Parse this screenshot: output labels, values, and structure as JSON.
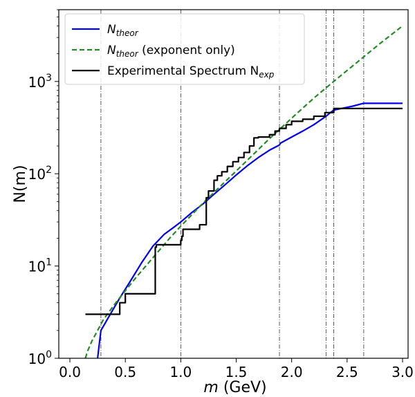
{
  "chart_data": {
    "type": "line",
    "title": "",
    "xlabel": {
      "symbol": "m",
      "unit": "(GeV)"
    },
    "ylabel": "N(m)",
    "x_scale": "linear",
    "y_scale": "log",
    "xlim": [
      -0.1,
      3.05
    ],
    "ylim": [
      1,
      6000
    ],
    "x_ticks": [
      0.0,
      0.5,
      1.0,
      1.5,
      2.0,
      2.5,
      3.0
    ],
    "x_tick_labels": [
      "0.0",
      "0.5",
      "1.0",
      "1.5",
      "2.0",
      "2.5",
      "3.0"
    ],
    "y_ticks": [
      1,
      10,
      100,
      1000
    ],
    "y_tick_labels": [
      {
        "base": "10",
        "exp": "0"
      },
      {
        "base": "10",
        "exp": "1"
      },
      {
        "base": "10",
        "exp": "2"
      },
      {
        "base": "10",
        "exp": "3"
      }
    ],
    "grid": false,
    "legend_position": "top-left",
    "vertical_lines": [
      0.28,
      1.0,
      1.89,
      2.31,
      2.38,
      2.65
    ],
    "series": [
      {
        "name": {
          "base": "N",
          "sub": "theor",
          "suffix": ""
        },
        "style": "solid",
        "color": "#0000ee",
        "x": [
          0.25,
          0.27,
          0.28,
          0.35,
          0.45,
          0.55,
          0.65,
          0.75,
          0.85,
          0.95,
          1.0,
          1.1,
          1.2,
          1.3,
          1.4,
          1.5,
          1.6,
          1.7,
          1.8,
          1.89,
          1.9,
          2.0,
          2.1,
          2.2,
          2.31,
          2.35,
          2.38,
          2.45,
          2.55,
          2.65,
          2.7,
          2.8,
          2.9,
          3.0
        ],
        "y": [
          1.0,
          1.6,
          2.0,
          2.8,
          4.5,
          7.0,
          11.0,
          16.5,
          22.0,
          27.0,
          30.0,
          38.0,
          47.0,
          60.0,
          76.0,
          97.0,
          122.0,
          150.0,
          180.0,
          205.0,
          215.0,
          250.0,
          290.0,
          340.0,
          420.0,
          460.0,
          490.0,
          510.0,
          540.0,
          580.0,
          580.0,
          580.0,
          580.0,
          580.0
        ]
      },
      {
        "name": {
          "base": "N",
          "sub": "theor",
          "suffix": " (exponent only)"
        },
        "style": "dashed",
        "color": "#228b22",
        "x": [
          0.14,
          0.16,
          0.2,
          0.25,
          0.3,
          0.4,
          0.5,
          0.6,
          0.7,
          0.8,
          0.9,
          1.0,
          1.2,
          1.4,
          1.6,
          1.8,
          2.0,
          2.2,
          2.4,
          2.6,
          2.8,
          3.0
        ],
        "y": [
          1.0,
          1.2,
          1.55,
          2.0,
          2.6,
          3.8,
          5.4,
          7.6,
          10.5,
          14.5,
          20.0,
          27.0,
          48.0,
          82.0,
          140.0,
          240.0,
          400.0,
          660.0,
          1050.0,
          1650.0,
          2600.0,
          4000.0
        ]
      },
      {
        "name": {
          "base": "Experimental Spectrum N",
          "sub": "exp",
          "suffix": ""
        },
        "style": "step",
        "color": "#000000",
        "x": [
          0.14,
          0.28,
          0.45,
          0.45,
          0.5,
          0.5,
          0.55,
          0.55,
          0.77,
          0.77,
          0.78,
          0.78,
          1.0,
          1.0,
          1.01,
          1.01,
          1.02,
          1.02,
          1.17,
          1.17,
          1.23,
          1.23,
          1.25,
          1.25,
          1.3,
          1.3,
          1.33,
          1.33,
          1.37,
          1.37,
          1.42,
          1.42,
          1.47,
          1.47,
          1.52,
          1.52,
          1.57,
          1.57,
          1.62,
          1.62,
          1.66,
          1.66,
          1.7,
          1.7,
          1.8,
          1.8,
          1.85,
          1.85,
          1.89,
          1.89,
          1.95,
          1.95,
          2.0,
          2.0,
          2.1,
          2.1,
          2.2,
          2.2,
          2.3,
          2.3,
          2.38,
          2.38,
          3.0
        ],
        "y": [
          3,
          3,
          3,
          4,
          4,
          5,
          5,
          5,
          5,
          16,
          16,
          17,
          17,
          19,
          19,
          21,
          21,
          25,
          25,
          28,
          28,
          55,
          55,
          65,
          65,
          85,
          85,
          95,
          95,
          105,
          105,
          120,
          120,
          135,
          135,
          150,
          150,
          170,
          170,
          200,
          200,
          245,
          245,
          250,
          250,
          265,
          265,
          290,
          290,
          310,
          310,
          340,
          340,
          370,
          370,
          390,
          390,
          420,
          420,
          460,
          460,
          510,
          510
        ]
      }
    ]
  }
}
